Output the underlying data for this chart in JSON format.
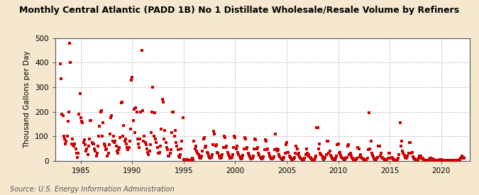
{
  "title": "Monthly Central Atlantic (PADD 1B) No 1 Distillate Wholesale/Resale Volume by Refiners",
  "ylabel": "Thousand Gallons per Day",
  "source": "Source: U.S. Energy Information Administration",
  "figure_bg": "#f5e8ce",
  "plot_bg": "#ffffff",
  "dot_color": "#cc0000",
  "grid_color": "#999999",
  "xlim": [
    1982.5,
    2022.75
  ],
  "ylim": [
    0,
    500
  ],
  "yticks": [
    0,
    100,
    200,
    300,
    400,
    500
  ],
  "xticks": [
    1985,
    1990,
    1995,
    2000,
    2005,
    2010,
    2015,
    2020
  ],
  "data_x": [
    1983.0,
    1983.08,
    1983.17,
    1983.25,
    1983.33,
    1983.42,
    1983.5,
    1983.58,
    1983.67,
    1983.75,
    1983.83,
    1983.92,
    1984.0,
    1984.08,
    1984.17,
    1984.25,
    1984.33,
    1984.42,
    1984.5,
    1984.58,
    1984.67,
    1984.75,
    1984.83,
    1984.92,
    1985.0,
    1985.08,
    1985.17,
    1985.25,
    1985.33,
    1985.42,
    1985.5,
    1985.58,
    1985.67,
    1985.75,
    1985.83,
    1985.92,
    1986.0,
    1986.08,
    1986.17,
    1986.25,
    1986.33,
    1986.42,
    1986.5,
    1986.58,
    1986.67,
    1986.75,
    1986.83,
    1986.92,
    1987.0,
    1987.08,
    1987.17,
    1987.25,
    1987.33,
    1987.42,
    1987.5,
    1987.58,
    1987.67,
    1987.75,
    1987.83,
    1987.92,
    1988.0,
    1988.08,
    1988.17,
    1988.25,
    1988.33,
    1988.42,
    1988.5,
    1988.58,
    1988.67,
    1988.75,
    1988.83,
    1988.92,
    1989.0,
    1989.08,
    1989.17,
    1989.25,
    1989.33,
    1989.42,
    1989.5,
    1989.58,
    1989.67,
    1989.75,
    1989.83,
    1989.92,
    1990.0,
    1990.08,
    1990.17,
    1990.25,
    1990.33,
    1990.42,
    1990.5,
    1990.58,
    1990.67,
    1990.75,
    1990.83,
    1990.92,
    1991.0,
    1991.08,
    1991.17,
    1991.25,
    1991.33,
    1991.42,
    1991.5,
    1991.58,
    1991.67,
    1991.75,
    1991.83,
    1991.92,
    1992.0,
    1992.08,
    1992.17,
    1992.25,
    1992.33,
    1992.42,
    1992.5,
    1992.58,
    1992.67,
    1992.75,
    1992.83,
    1992.92,
    1993.0,
    1993.08,
    1993.17,
    1993.25,
    1993.33,
    1993.42,
    1993.5,
    1993.58,
    1993.67,
    1993.75,
    1993.83,
    1993.92,
    1994.0,
    1994.08,
    1994.17,
    1994.25,
    1994.33,
    1994.42,
    1994.5,
    1994.58,
    1994.67,
    1994.75,
    1994.83,
    1994.92,
    1995.0,
    1995.08,
    1995.17,
    1995.25,
    1995.33,
    1995.42,
    1995.5,
    1995.58,
    1995.67,
    1995.75,
    1995.83,
    1995.92,
    1996.0,
    1996.08,
    1996.17,
    1996.25,
    1996.33,
    1996.42,
    1996.5,
    1996.58,
    1996.67,
    1996.75,
    1996.83,
    1996.92,
    1997.0,
    1997.08,
    1997.17,
    1997.25,
    1997.33,
    1997.42,
    1997.5,
    1997.58,
    1997.67,
    1997.75,
    1997.83,
    1997.92,
    1998.0,
    1998.08,
    1998.17,
    1998.25,
    1998.33,
    1998.42,
    1998.5,
    1998.58,
    1998.67,
    1998.75,
    1998.83,
    1998.92,
    1999.0,
    1999.08,
    1999.17,
    1999.25,
    1999.33,
    1999.42,
    1999.5,
    1999.58,
    1999.67,
    1999.75,
    1999.83,
    1999.92,
    2000.0,
    2000.08,
    2000.17,
    2000.25,
    2000.33,
    2000.42,
    2000.5,
    2000.58,
    2000.67,
    2000.75,
    2000.83,
    2000.92,
    2001.0,
    2001.08,
    2001.17,
    2001.25,
    2001.33,
    2001.42,
    2001.5,
    2001.58,
    2001.67,
    2001.75,
    2001.83,
    2001.92,
    2002.0,
    2002.08,
    2002.17,
    2002.25,
    2002.33,
    2002.42,
    2002.5,
    2002.58,
    2002.67,
    2002.75,
    2002.83,
    2002.92,
    2003.0,
    2003.08,
    2003.17,
    2003.25,
    2003.33,
    2003.42,
    2003.5,
    2003.58,
    2003.67,
    2003.75,
    2003.83,
    2003.92,
    2004.0,
    2004.08,
    2004.17,
    2004.25,
    2004.33,
    2004.42,
    2004.5,
    2004.58,
    2004.67,
    2004.75,
    2004.83,
    2004.92,
    2005.0,
    2005.08,
    2005.17,
    2005.25,
    2005.33,
    2005.42,
    2005.5,
    2005.58,
    2005.67,
    2005.75,
    2005.83,
    2005.92,
    2006.0,
    2006.08,
    2006.17,
    2006.25,
    2006.33,
    2006.42,
    2006.5,
    2006.58,
    2006.67,
    2006.75,
    2006.83,
    2006.92,
    2007.0,
    2007.08,
    2007.17,
    2007.25,
    2007.33,
    2007.42,
    2007.5,
    2007.58,
    2007.67,
    2007.75,
    2007.83,
    2007.92,
    2008.0,
    2008.08,
    2008.17,
    2008.25,
    2008.33,
    2008.42,
    2008.5,
    2008.58,
    2008.67,
    2008.75,
    2008.83,
    2008.92,
    2009.0,
    2009.08,
    2009.17,
    2009.25,
    2009.33,
    2009.42,
    2009.5,
    2009.58,
    2009.67,
    2009.75,
    2009.83,
    2009.92,
    2010.0,
    2010.08,
    2010.17,
    2010.25,
    2010.33,
    2010.42,
    2010.5,
    2010.58,
    2010.67,
    2010.75,
    2010.83,
    2010.92,
    2011.0,
    2011.08,
    2011.17,
    2011.25,
    2011.33,
    2011.42,
    2011.5,
    2011.58,
    2011.67,
    2011.75,
    2011.83,
    2011.92,
    2012.0,
    2012.08,
    2012.17,
    2012.25,
    2012.33,
    2012.42,
    2012.5,
    2012.58,
    2012.67,
    2012.75,
    2012.83,
    2012.92,
    2013.0,
    2013.08,
    2013.17,
    2013.25,
    2013.33,
    2013.42,
    2013.5,
    2013.58,
    2013.67,
    2013.75,
    2013.83,
    2013.92,
    2014.0,
    2014.08,
    2014.17,
    2014.25,
    2014.33,
    2014.42,
    2014.5,
    2014.58,
    2014.67,
    2014.75,
    2014.83,
    2014.92,
    2015.0,
    2015.08,
    2015.17,
    2015.25,
    2015.33,
    2015.42,
    2015.5,
    2015.58,
    2015.67,
    2015.75,
    2015.83,
    2015.92,
    2016.0,
    2016.08,
    2016.17,
    2016.25,
    2016.33,
    2016.42,
    2016.5,
    2016.58,
    2016.67,
    2016.75,
    2016.83,
    2016.92,
    2017.0,
    2017.08,
    2017.17,
    2017.25,
    2017.33,
    2017.42,
    2017.5,
    2017.58,
    2017.67,
    2017.75,
    2017.83,
    2017.92,
    2018.0,
    2018.08,
    2018.17,
    2018.25,
    2018.33,
    2018.42,
    2018.5,
    2018.58,
    2018.67,
    2018.75,
    2018.83,
    2018.92,
    2019.0,
    2019.08,
    2019.17,
    2019.25,
    2019.33,
    2019.42,
    2019.5,
    2019.58,
    2019.67,
    2019.75,
    2019.83,
    2019.92,
    2020.0,
    2020.08,
    2020.17,
    2020.25,
    2020.33,
    2020.42,
    2020.5,
    2020.58,
    2020.67,
    2020.75,
    2020.83,
    2020.92,
    2021.0,
    2021.08,
    2021.17,
    2021.25,
    2021.33,
    2021.42,
    2021.5,
    2021.58,
    2021.67,
    2021.75,
    2021.83,
    2021.92,
    2022.0,
    2022.08,
    2022.17,
    2022.25
  ],
  "data_y": [
    395,
    335,
    190,
    185,
    100,
    90,
    70,
    80,
    100,
    160,
    200,
    480,
    400,
    70,
    90,
    65,
    60,
    70,
    50,
    30,
    15,
    30,
    190,
    275,
    175,
    160,
    155,
    75,
    85,
    65,
    40,
    50,
    25,
    60,
    90,
    165,
    165,
    75,
    70,
    70,
    50,
    40,
    20,
    30,
    60,
    100,
    140,
    200,
    205,
    100,
    155,
    70,
    60,
    45,
    50,
    20,
    30,
    65,
    110,
    175,
    185,
    80,
    100,
    75,
    80,
    60,
    40,
    30,
    45,
    55,
    95,
    235,
    240,
    100,
    145,
    80,
    90,
    70,
    55,
    45,
    55,
    80,
    130,
    330,
    340,
    165,
    210,
    115,
    215,
    200,
    90,
    70,
    55,
    90,
    200,
    450,
    205,
    80,
    100,
    75,
    65,
    50,
    35,
    25,
    40,
    65,
    115,
    200,
    300,
    100,
    195,
    90,
    75,
    55,
    30,
    30,
    35,
    60,
    130,
    250,
    240,
    90,
    125,
    75,
    55,
    45,
    20,
    20,
    30,
    45,
    115,
    200,
    200,
    100,
    125,
    75,
    60,
    45,
    20,
    15,
    25,
    50,
    80,
    175,
    5,
    5,
    5,
    5,
    5,
    3,
    3,
    3,
    3,
    5,
    10,
    5,
    80,
    50,
    60,
    40,
    30,
    25,
    15,
    10,
    10,
    20,
    40,
    90,
    95,
    55,
    60,
    35,
    30,
    20,
    15,
    10,
    15,
    25,
    65,
    120,
    110,
    60,
    65,
    35,
    30,
    20,
    10,
    10,
    15,
    25,
    55,
    100,
    95,
    55,
    60,
    35,
    25,
    20,
    10,
    10,
    15,
    25,
    55,
    100,
    95,
    50,
    60,
    35,
    25,
    18,
    12,
    8,
    12,
    22,
    50,
    95,
    90,
    50,
    55,
    30,
    22,
    18,
    10,
    8,
    10,
    20,
    48,
    90,
    85,
    48,
    55,
    30,
    22,
    15,
    10,
    8,
    10,
    18,
    45,
    85,
    80,
    45,
    50,
    30,
    20,
    15,
    10,
    8,
    10,
    18,
    45,
    110,
    50,
    40,
    45,
    25,
    18,
    12,
    8,
    5,
    8,
    15,
    30,
    65,
    75,
    35,
    35,
    20,
    15,
    10,
    5,
    5,
    8,
    15,
    30,
    60,
    50,
    25,
    30,
    18,
    12,
    8,
    5,
    3,
    5,
    10,
    25,
    50,
    30,
    20,
    25,
    15,
    10,
    8,
    3,
    3,
    3,
    10,
    20,
    135,
    135,
    50,
    70,
    30,
    25,
    20,
    10,
    5,
    8,
    15,
    25,
    80,
    80,
    30,
    40,
    22,
    18,
    12,
    8,
    5,
    5,
    10,
    20,
    65,
    70,
    30,
    35,
    22,
    15,
    12,
    8,
    5,
    5,
    10,
    15,
    60,
    65,
    25,
    30,
    20,
    12,
    10,
    5,
    3,
    3,
    8,
    12,
    55,
    50,
    18,
    25,
    15,
    10,
    8,
    3,
    3,
    3,
    5,
    10,
    45,
    195,
    50,
    80,
    30,
    22,
    18,
    8,
    5,
    5,
    10,
    15,
    60,
    60,
    20,
    30,
    15,
    10,
    8,
    3,
    3,
    3,
    5,
    10,
    30,
    30,
    10,
    15,
    10,
    8,
    5,
    3,
    3,
    3,
    5,
    10,
    25,
    155,
    60,
    80,
    40,
    30,
    22,
    15,
    10,
    10,
    20,
    30,
    75,
    75,
    30,
    35,
    18,
    12,
    8,
    5,
    3,
    3,
    5,
    10,
    20,
    20,
    10,
    12,
    8,
    5,
    3,
    3,
    3,
    3,
    3,
    5,
    10,
    10,
    5,
    8,
    5,
    3,
    3,
    3,
    3,
    3,
    3,
    3,
    5,
    5,
    3,
    3,
    3,
    3,
    3,
    3,
    3,
    3,
    3,
    3,
    3,
    3,
    3,
    3,
    3,
    3,
    3,
    3,
    3,
    3,
    3,
    5,
    10,
    20,
    10,
    15,
    10
  ]
}
